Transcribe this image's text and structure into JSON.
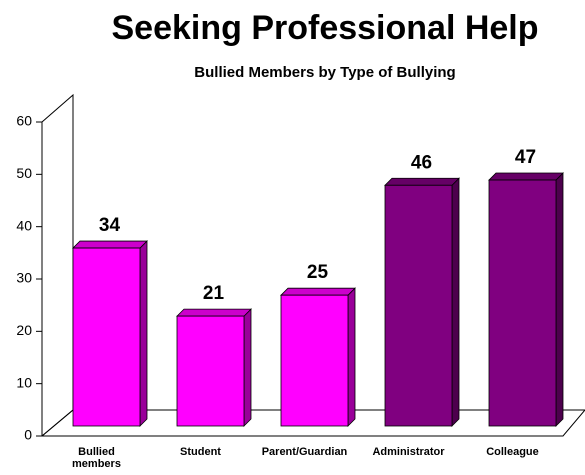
{
  "chart_data": {
    "type": "bar3d",
    "title": "Seeking Professional Help",
    "subtitle": "Bullied Members by Type of Bullying",
    "categories": [
      "Bullied members",
      "Student",
      "Parent/Guardian",
      "Administrator",
      "Colleague"
    ],
    "values": [
      34,
      21,
      25,
      46,
      47
    ],
    "colors": [
      "#ff00ff",
      "#ff00ff",
      "#ff00ff",
      "#800080",
      "#800080"
    ],
    "ylim": [
      0,
      60
    ],
    "yticks": [
      0,
      10,
      20,
      30,
      40,
      50,
      60
    ]
  }
}
